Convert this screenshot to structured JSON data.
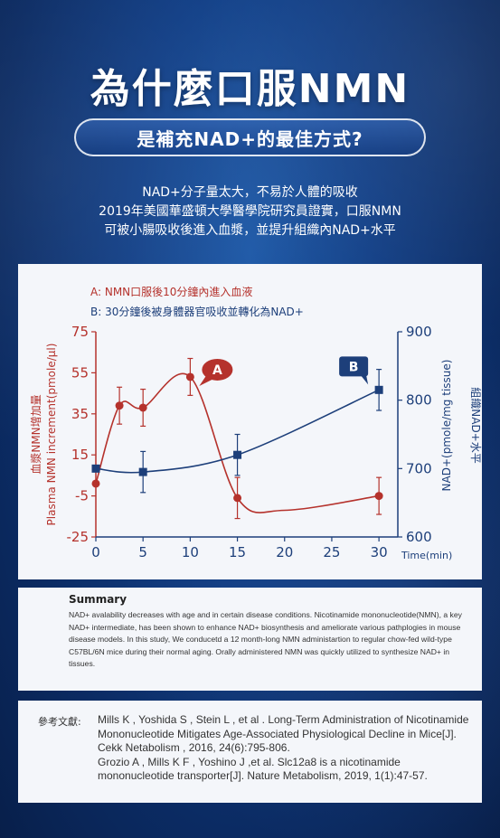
{
  "header": {
    "title": "為什麼口服NMN",
    "subtitle": "是補充NAD+的最佳方式?"
  },
  "intro": {
    "lines": [
      "NAD+分子量太大，不易於人體的吸收",
      "2019年美國華盛頓大學醫學院研究員證實，口服NMN",
      "可被小腸吸收後進入血漿，並提升組織內NAD+水平"
    ]
  },
  "chart_legend": {
    "a": "A:  NMN口服後10分鐘內進入血液",
    "b": "B:  30分鐘後被身體器官吸收並轉化為NAD+"
  },
  "chart_data": {
    "type": "line",
    "x": [
      0,
      2.5,
      5,
      10,
      15,
      30
    ],
    "x_ticks": [
      0,
      5,
      10,
      15,
      20,
      25,
      30
    ],
    "x_label": "Time(min)",
    "xlim": [
      0,
      32
    ],
    "left_axis": {
      "label_zh": "血漿NMN增加量",
      "label_en": "Plasma NMN increment(pmole/μl)",
      "ylim": [
        -25,
        75
      ],
      "ticks": [
        -25,
        -5,
        15,
        35,
        55,
        75
      ],
      "color": "#b5322c"
    },
    "right_axis": {
      "label_zh": "組織NAD+水平",
      "label_en": "NAD+(pmole/mg tissue)",
      "ylim": [
        600,
        900
      ],
      "ticks": [
        600,
        700,
        800,
        900
      ],
      "color": "#1d3f7a"
    },
    "series": [
      {
        "marker": "circle",
        "axis": "left",
        "color": "#b5322c",
        "points": [
          {
            "x": 0,
            "y": 1,
            "err": 0
          },
          {
            "x": 2.5,
            "y": 39,
            "err": 9
          },
          {
            "x": 5,
            "y": 38,
            "err": 9
          },
          {
            "x": 10,
            "y": 53,
            "err": 9
          },
          {
            "x": 15,
            "y": -6,
            "err": 10
          },
          {
            "x": 30,
            "y": -5,
            "err": 9
          }
        ],
        "curve_waypoints": [
          {
            "x": 20,
            "y": -12
          }
        ],
        "callout": "A"
      },
      {
        "marker": "square",
        "axis": "right",
        "color": "#1d3f7a",
        "points": [
          {
            "x": 0,
            "y": 700,
            "err": 0
          },
          {
            "x": 5,
            "y": 695,
            "err": 30
          },
          {
            "x": 15,
            "y": 720,
            "err": 30
          },
          {
            "x": 30,
            "y": 815,
            "err": 30
          }
        ],
        "callout": "B"
      }
    ]
  },
  "summary": {
    "title": "Summary",
    "text": "NAD+ avalability decreases with age and in certain disease conditions. Nicotinamide mononucleotide(NMN), a key NAD+ intermediate, has been shown to enhance NAD+ biosynthesis and ameliorate various pathplogies in mouse disease models. In this study, We conducetd a 12 month-long NMN administartion to regular chow-fed wild-type C57BL/6N mice during their normal aging. Orally administered NMN was quickly utilized to synthesize NAD+ in tissues."
  },
  "references": {
    "label": "參考文獻:",
    "items": [
      "Mills K , Yoshida S , Stein L , et al . Long-Term Administration of Nicotinamide Mononucleotide Mitigates Age-Associated Physiological Decline in Mice[J]. Cekk Netabolism , 2016, 24(6):795-806.",
      "Grozio A , Mills K F , Yoshino J ,et al. Slc12a8 is a nicotinamide mononucleotide transporter[J]. Nature Metabolism, 2019, 1(1):47-57."
    ]
  }
}
